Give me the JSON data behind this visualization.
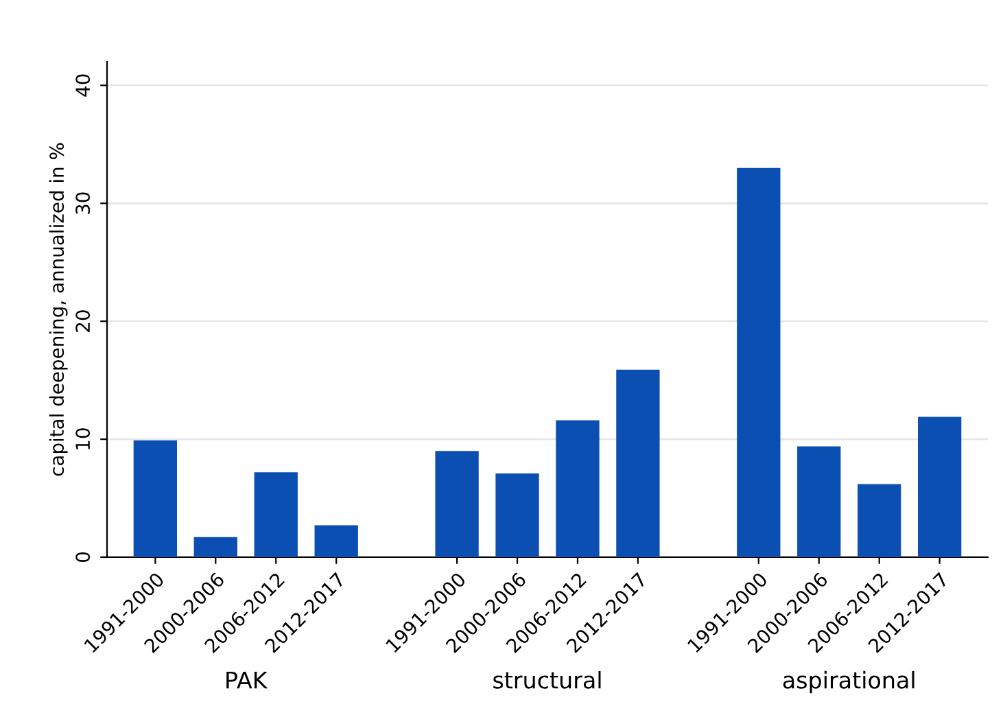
{
  "chart_data": {
    "type": "bar",
    "ylabel": "capital deepening, annualized in %",
    "categories": [
      "1991-2000",
      "2000-2006",
      "2006-2012",
      "2012-2017",
      null,
      "1991-2000",
      "2000-2006",
      "2006-2012",
      "2012-2017",
      null,
      "1991-2000",
      "2000-2006",
      "2006-2012",
      "2012-2017"
    ],
    "values": [
      9.9,
      1.7,
      7.2,
      2.7,
      null,
      9.0,
      7.1,
      11.6,
      15.9,
      null,
      33.0,
      9.4,
      6.2,
      11.9
    ],
    "color": "#0b4fb3",
    "ylim": [
      0,
      42
    ],
    "yticks": [
      0,
      10,
      20,
      30,
      40
    ],
    "grid": "y",
    "legend": false,
    "annotations": [
      "PAK",
      "structural",
      "aspirational"
    ]
  }
}
